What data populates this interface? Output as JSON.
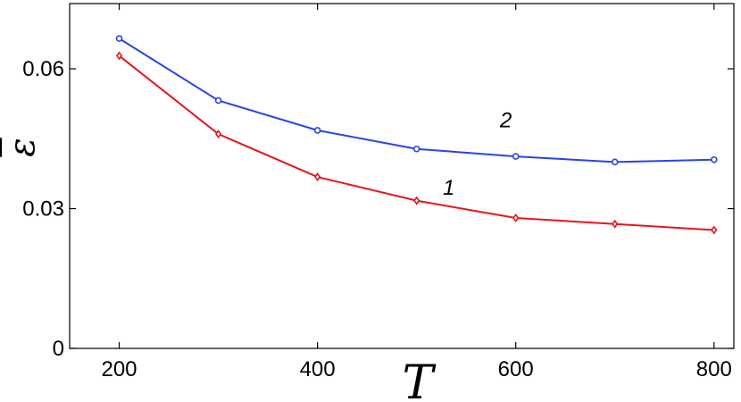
{
  "chart_data": {
    "type": "line",
    "xlabel": "T",
    "ylabel": "ε",
    "xlim": [
      150,
      820
    ],
    "ylim": [
      0,
      0.074
    ],
    "xticks": [
      200,
      400,
      600,
      800
    ],
    "yticks": [
      0,
      0.03,
      0.06
    ],
    "ytick_labels": [
      "0",
      "0.03",
      "0.06"
    ],
    "grid": false,
    "legend": "none",
    "series": [
      {
        "name": "1",
        "color": "#e8141c",
        "marker": "diamond",
        "x": [
          200,
          300,
          400,
          500,
          600,
          700,
          800
        ],
        "y": [
          0.0628,
          0.046,
          0.0368,
          0.0317,
          0.028,
          0.0267,
          0.0254
        ]
      },
      {
        "name": "2",
        "color": "#2744e8",
        "marker": "circle",
        "x": [
          200,
          300,
          400,
          500,
          600,
          700,
          800
        ],
        "y": [
          0.0665,
          0.0532,
          0.0468,
          0.0428,
          0.0412,
          0.04,
          0.0405
        ]
      }
    ]
  }
}
